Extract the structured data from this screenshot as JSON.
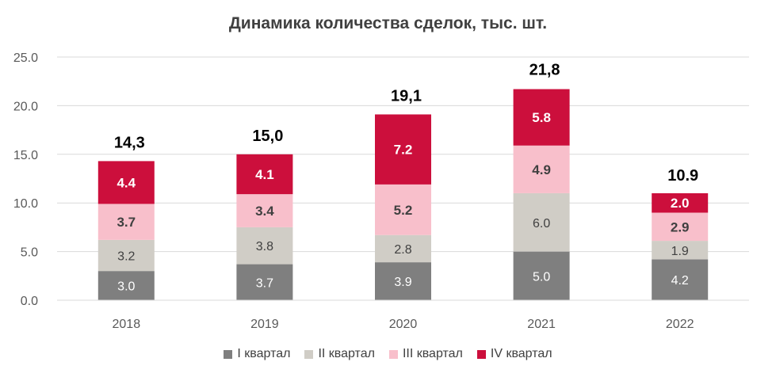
{
  "chart_data": {
    "type": "bar",
    "stacked": true,
    "title": "Динамика количества сделок, тыс. шт.",
    "xlabel": "",
    "ylabel": "",
    "ylim": [
      0,
      25
    ],
    "yticks": [
      "0.0",
      "5.0",
      "10.0",
      "15.0",
      "20.0",
      "25.0"
    ],
    "grid": true,
    "legend_position": "bottom",
    "categories": [
      "2018",
      "2019",
      "2020",
      "2021",
      "2022"
    ],
    "series": [
      {
        "name": "I квартал",
        "color": "#7f7f7f",
        "values": [
          3.0,
          3.7,
          3.9,
          5.0,
          4.2
        ],
        "labels": [
          "3.0",
          "3.7",
          "3.9",
          "5.0",
          "4.2"
        ],
        "label_color": "#ffffff",
        "label_bold": false
      },
      {
        "name": "II квартал",
        "color": "#d0cdc6",
        "values": [
          3.2,
          3.8,
          2.8,
          6.0,
          1.9
        ],
        "labels": [
          "3.2",
          "3.8",
          "2.8",
          "6.0",
          "1.9"
        ],
        "label_color": "#404040",
        "label_bold": false
      },
      {
        "name": "III квартал",
        "color": "#f8bfcb",
        "values": [
          3.7,
          3.4,
          5.2,
          4.9,
          2.9
        ],
        "labels": [
          "3.7",
          "3.4",
          "5.2",
          "4.9",
          "2.9"
        ],
        "label_color": "#404040",
        "label_bold": true
      },
      {
        "name": "IV квартал",
        "color": "#cc0f3c",
        "values": [
          4.4,
          4.1,
          7.2,
          5.8,
          2.0
        ],
        "labels": [
          "4.4",
          "4.1",
          "7.2",
          "5.8",
          "2.0"
        ],
        "label_color": "#ffffff",
        "label_bold": true
      }
    ],
    "totals": [
      14.3,
      15.0,
      19.1,
      21.8,
      10.9
    ],
    "total_labels": [
      "14,3",
      "15,0",
      "19,1",
      "21,8",
      "10.9"
    ]
  }
}
